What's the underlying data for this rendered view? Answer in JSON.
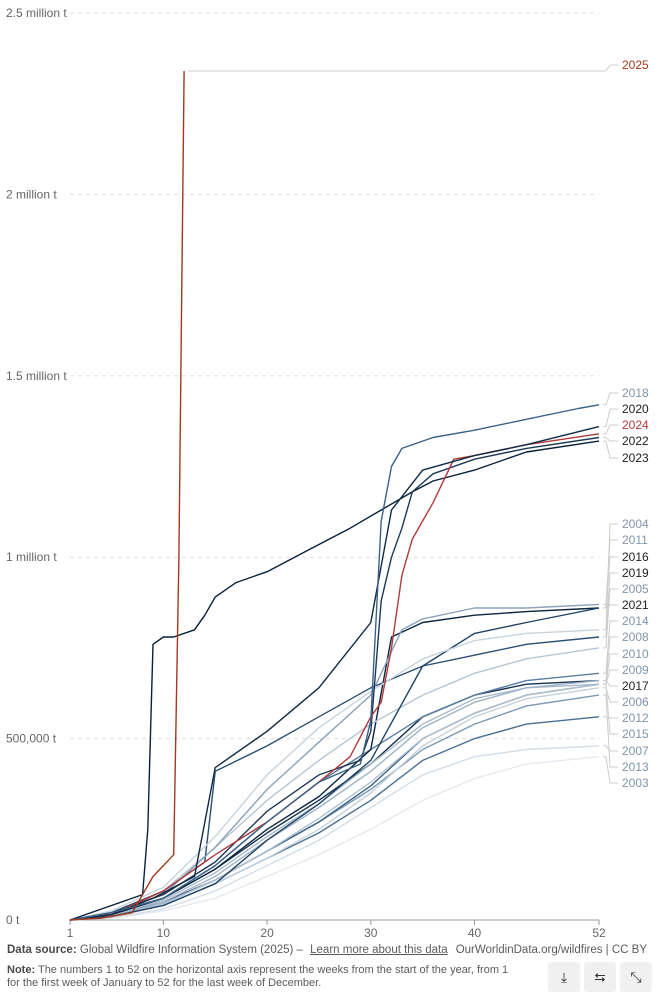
{
  "chart_data": {
    "type": "line",
    "xlabel": "",
    "ylabel": "",
    "xlim": [
      1,
      52
    ],
    "ylim": [
      0,
      2500000
    ],
    "x_ticks": [
      {
        "v": 1,
        "label": "1"
      },
      {
        "v": 10,
        "label": "10"
      },
      {
        "v": 20,
        "label": "20"
      },
      {
        "v": 30,
        "label": "30"
      },
      {
        "v": 40,
        "label": "40"
      },
      {
        "v": 52,
        "label": "52"
      }
    ],
    "y_ticks": [
      {
        "v": 0,
        "label": "0 t"
      },
      {
        "v": 500000,
        "label": "500,000 t"
      },
      {
        "v": 1000000,
        "label": "1 million t"
      },
      {
        "v": 1500000,
        "label": "1.5 million t"
      },
      {
        "v": 2000000,
        "label": "2 million t"
      },
      {
        "v": 2500000,
        "label": "2.5 million t"
      }
    ],
    "grid": "horizontal dashed",
    "legend": "right",
    "series": [
      {
        "name": "2025",
        "color": "#a2391c",
        "x": [
          1,
          4,
          7,
          9,
          10,
          11,
          11.5,
          12
        ],
        "y": [
          0,
          5000,
          20000,
          120000,
          150000,
          180000,
          1000000,
          2340000
        ]
      },
      {
        "name": "2018",
        "color": "#3a6288",
        "x": [
          1,
          5,
          10,
          15,
          20,
          25,
          29,
          30,
          31,
          32,
          33,
          36,
          40,
          45,
          50,
          52
        ],
        "y": [
          0,
          20000,
          60000,
          150000,
          270000,
          380000,
          430000,
          550000,
          1100000,
          1250000,
          1300000,
          1330000,
          1350000,
          1380000,
          1410000,
          1420000
        ]
      },
      {
        "name": "2020",
        "color": "#0f2a45",
        "x": [
          1,
          5,
          9,
          13,
          15,
          20,
          25,
          30,
          32,
          35,
          40,
          45,
          52
        ],
        "y": [
          0,
          15000,
          60000,
          120000,
          420000,
          520000,
          640000,
          820000,
          1130000,
          1240000,
          1280000,
          1310000,
          1360000
        ]
      },
      {
        "name": "2024",
        "color": "#b13a3a",
        "x": [
          1,
          5,
          10,
          15,
          20,
          25,
          28,
          30,
          31,
          32,
          33,
          34,
          36,
          38,
          40,
          45,
          52
        ],
        "y": [
          0,
          15000,
          80000,
          180000,
          270000,
          380000,
          450000,
          560000,
          600000,
          750000,
          950000,
          1050000,
          1150000,
          1270000,
          1280000,
          1310000,
          1340000
        ]
      },
      {
        "name": "2022",
        "color": "#1d3856",
        "x": [
          1,
          5,
          10,
          15,
          20,
          25,
          29,
          30,
          31,
          32,
          33,
          34,
          36,
          40,
          45,
          52
        ],
        "y": [
          0,
          20000,
          70000,
          160000,
          300000,
          400000,
          440000,
          520000,
          880000,
          1000000,
          1080000,
          1180000,
          1230000,
          1270000,
          1300000,
          1330000
        ]
      },
      {
        "name": "2023",
        "color": "#08213a",
        "x": [
          1,
          2,
          5,
          8,
          8.5,
          9,
          10,
          11,
          13,
          14,
          15,
          17,
          20,
          24,
          28,
          31,
          34,
          36,
          40,
          45,
          52
        ],
        "y": [
          0,
          10000,
          40000,
          70000,
          250000,
          760000,
          780000,
          780000,
          800000,
          840000,
          890000,
          930000,
          960000,
          1020000,
          1080000,
          1130000,
          1180000,
          1210000,
          1240000,
          1290000,
          1320000
        ]
      },
      {
        "name": "2004",
        "color": "#c9d3dc",
        "x": [
          1,
          5,
          10,
          15,
          20,
          25,
          30,
          35,
          40,
          45,
          52
        ],
        "y": [
          0,
          25000,
          90000,
          230000,
          400000,
          530000,
          630000,
          720000,
          770000,
          790000,
          800000
        ]
      },
      {
        "name": "2011",
        "color": "#8aa2bb",
        "x": [
          1,
          5,
          10,
          15,
          20,
          25,
          30,
          33,
          35,
          40,
          45,
          52
        ],
        "y": [
          0,
          20000,
          70000,
          200000,
          360000,
          490000,
          620000,
          800000,
          830000,
          860000,
          860000,
          870000
        ]
      },
      {
        "name": "2016",
        "color": "#1f4466",
        "x": [
          1,
          5,
          10,
          15,
          20,
          25,
          30,
          35,
          40,
          45,
          52
        ],
        "y": [
          0,
          10000,
          40000,
          100000,
          220000,
          320000,
          440000,
          700000,
          790000,
          820000,
          860000
        ]
      },
      {
        "name": "2019",
        "color": "#2a4f73",
        "x": [
          1,
          5,
          10,
          14,
          15,
          20,
          25,
          30,
          35,
          40,
          45,
          52
        ],
        "y": [
          0,
          20000,
          80000,
          160000,
          410000,
          480000,
          560000,
          640000,
          700000,
          730000,
          760000,
          780000
        ]
      },
      {
        "name": "2005",
        "color": "#b7c5d3",
        "x": [
          1,
          5,
          10,
          15,
          20,
          25,
          30,
          35,
          40,
          45,
          52
        ],
        "y": [
          0,
          20000,
          80000,
          200000,
          330000,
          440000,
          540000,
          620000,
          680000,
          720000,
          750000
        ]
      },
      {
        "name": "2021",
        "color": "#0c2540",
        "x": [
          1,
          5,
          10,
          15,
          20,
          25,
          30,
          32,
          35,
          40,
          45,
          52
        ],
        "y": [
          0,
          15000,
          60000,
          140000,
          250000,
          340000,
          470000,
          780000,
          820000,
          840000,
          850000,
          860000
        ]
      },
      {
        "name": "2014",
        "color": "#5a7fa3",
        "x": [
          1,
          5,
          10,
          15,
          20,
          25,
          30,
          35,
          40,
          45,
          52
        ],
        "y": [
          0,
          15000,
          60000,
          150000,
          270000,
          380000,
          470000,
          560000,
          620000,
          660000,
          680000
        ]
      },
      {
        "name": "2008",
        "color": "#9fb3c7",
        "x": [
          1,
          5,
          10,
          15,
          20,
          25,
          30,
          35,
          40,
          45,
          52
        ],
        "y": [
          0,
          10000,
          50000,
          120000,
          220000,
          310000,
          410000,
          530000,
          600000,
          640000,
          660000
        ]
      },
      {
        "name": "2010",
        "color": "#a8bbcd",
        "x": [
          1,
          5,
          10,
          15,
          20,
          25,
          30,
          35,
          40,
          45,
          52
        ],
        "y": [
          0,
          12000,
          55000,
          130000,
          230000,
          320000,
          430000,
          540000,
          610000,
          640000,
          650000
        ]
      },
      {
        "name": "2009",
        "color": "#b0c0d0",
        "x": [
          1,
          5,
          10,
          15,
          20,
          25,
          30,
          35,
          40,
          45,
          52
        ],
        "y": [
          0,
          10000,
          45000,
          110000,
          190000,
          280000,
          380000,
          500000,
          570000,
          620000,
          650000
        ]
      },
      {
        "name": "2017",
        "color": "#15324f",
        "x": [
          1,
          5,
          10,
          15,
          20,
          25,
          30,
          35,
          40,
          45,
          52
        ],
        "y": [
          0,
          15000,
          60000,
          140000,
          240000,
          330000,
          430000,
          560000,
          620000,
          650000,
          660000
        ]
      },
      {
        "name": "2006",
        "color": "#c5d1dc",
        "x": [
          1,
          5,
          10,
          15,
          20,
          25,
          30,
          35,
          40,
          45,
          52
        ],
        "y": [
          0,
          8000,
          40000,
          100000,
          170000,
          250000,
          350000,
          480000,
          560000,
          610000,
          640000
        ]
      },
      {
        "name": "2012",
        "color": "#4a6f94",
        "x": [
          1,
          5,
          10,
          15,
          20,
          25,
          30,
          35,
          40,
          45,
          52
        ],
        "y": [
          0,
          10000,
          40000,
          100000,
          170000,
          240000,
          330000,
          440000,
          500000,
          540000,
          560000
        ]
      },
      {
        "name": "2015",
        "color": "#3b6287",
        "x": [
          1,
          5,
          10,
          15,
          20,
          25,
          30,
          35,
          40,
          45,
          52
        ],
        "y": [
          0,
          12000,
          50000,
          110000,
          190000,
          270000,
          370000,
          500000,
          570000,
          620000,
          650000
        ]
      },
      {
        "name": "2007",
        "color": "#d4dde6",
        "x": [
          1,
          5,
          10,
          15,
          20,
          25,
          30,
          35,
          40,
          45,
          52
        ],
        "y": [
          0,
          6000,
          30000,
          80000,
          150000,
          220000,
          310000,
          400000,
          450000,
          470000,
          480000
        ]
      },
      {
        "name": "2013",
        "color": "#7a97b4",
        "x": [
          1,
          5,
          10,
          15,
          20,
          25,
          30,
          35,
          40,
          45,
          52
        ],
        "y": [
          0,
          10000,
          45000,
          110000,
          190000,
          270000,
          360000,
          470000,
          540000,
          590000,
          620000
        ]
      },
      {
        "name": "2003",
        "color": "#e4eaf0",
        "x": [
          1,
          5,
          10,
          15,
          20,
          25,
          30,
          35,
          40,
          45,
          52
        ],
        "y": [
          0,
          5000,
          25000,
          60000,
          120000,
          180000,
          250000,
          330000,
          390000,
          430000,
          450000
        ]
      }
    ]
  },
  "footer": {
    "source_label": "Data source:",
    "source_text": "Global Wildfire Information System (2025) –",
    "source_link": "Learn more about this data",
    "credit": "OurWorldinData.org/wildfires | CC BY",
    "note_label": "Note:",
    "note_text": "The numbers 1 to 52 on the horizontal axis represent the weeks from the start of the year, from 1 for the first week of January to 52 for the last week of December."
  },
  "buttons": {
    "download_icon": "download-icon",
    "share_icon": "share-icon",
    "fullscreen_icon": "exit-fullscreen-icon"
  }
}
